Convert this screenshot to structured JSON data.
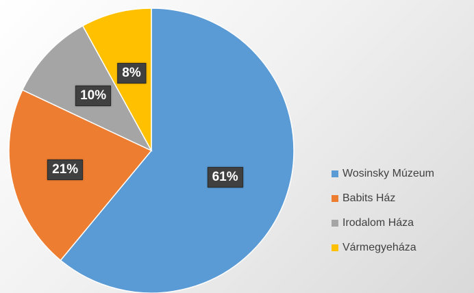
{
  "chart_data": {
    "type": "pie",
    "categories": [
      "Wosinsky Múzeum",
      "Babits Ház",
      "Irodalom Háza",
      "Vármegyeháza"
    ],
    "values": [
      61,
      21,
      10,
      8
    ],
    "value_labels": [
      "61%",
      "21%",
      "10%",
      "8%"
    ],
    "colors": [
      "#5b9bd5",
      "#ed7d31",
      "#a5a5a5",
      "#ffc000"
    ],
    "start": "12 o'clock",
    "direction": "clockwise",
    "legend_position": "bottom-right",
    "title": ""
  }
}
